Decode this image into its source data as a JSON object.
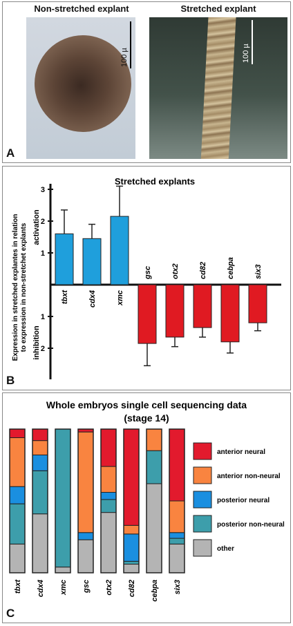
{
  "panel_a": {
    "letter": "A",
    "left_title": "Non-stretched explant",
    "right_title": "Stretched explant",
    "scale_left": "100 µ",
    "scale_right": "100 µ"
  },
  "panel_b": {
    "letter": "B",
    "ylabel_line1": "Expression in stretched explantes in relation",
    "ylabel_line2": "to expression in non-stretchet explants",
    "activation_label": "activation",
    "inhibition_label": "inhibition",
    "colors": {
      "activation": "#1f9fdc",
      "inhibition": "#e01a22"
    }
  },
  "panel_c": {
    "letter": "C",
    "title_line1": "Whole embryos single cell sequencing data",
    "title_line2": "(stage 14)"
  },
  "chart_data": [
    {
      "type": "bar",
      "title": "Stretched  explants",
      "categories": [
        "tbxt",
        "cdx4",
        "xmc",
        "gsc",
        "otx2",
        "cd82",
        "cebpa",
        "six3"
      ],
      "values": [
        1.6,
        1.45,
        2.15,
        -1.85,
        -1.65,
        -1.35,
        -1.8,
        -1.2
      ],
      "errors": [
        0.75,
        0.45,
        0.95,
        0.7,
        0.3,
        0.3,
        0.35,
        0.25
      ],
      "yticks_up": [
        "1",
        "2",
        "3"
      ],
      "yticks_down": [
        "1",
        "2"
      ],
      "ylim": [
        -2.6,
        3.2
      ]
    },
    {
      "type": "bar",
      "stacked": true,
      "categories": [
        "tbxt",
        "cdx4",
        "xmc",
        "gsc",
        "otx2",
        "cd82",
        "cebpa",
        "six3"
      ],
      "series": [
        {
          "name": "other",
          "color": "#b4b4b4",
          "values": [
            20,
            41,
            4,
            23,
            42,
            6,
            62,
            20
          ]
        },
        {
          "name": "posterior non-neural",
          "color": "#3d9eab",
          "values": [
            28,
            30,
            96,
            0,
            9,
            2,
            23,
            4
          ]
        },
        {
          "name": "posterior neural",
          "color": "#1a8fe0",
          "values": [
            12,
            11,
            0,
            5,
            5,
            19,
            0,
            4
          ]
        },
        {
          "name": "anterior non-neural",
          "color": "#f98440",
          "values": [
            34,
            10,
            0,
            70,
            18,
            6,
            15,
            22
          ]
        },
        {
          "name": "anterior neural",
          "color": "#e21a2d",
          "values": [
            6,
            8,
            0,
            2,
            26,
            67,
            0,
            50
          ]
        }
      ],
      "legend_order": [
        "anterior neural",
        "anterior non-neural",
        "posterior neural",
        "posterior non-neural",
        "other"
      ]
    }
  ]
}
